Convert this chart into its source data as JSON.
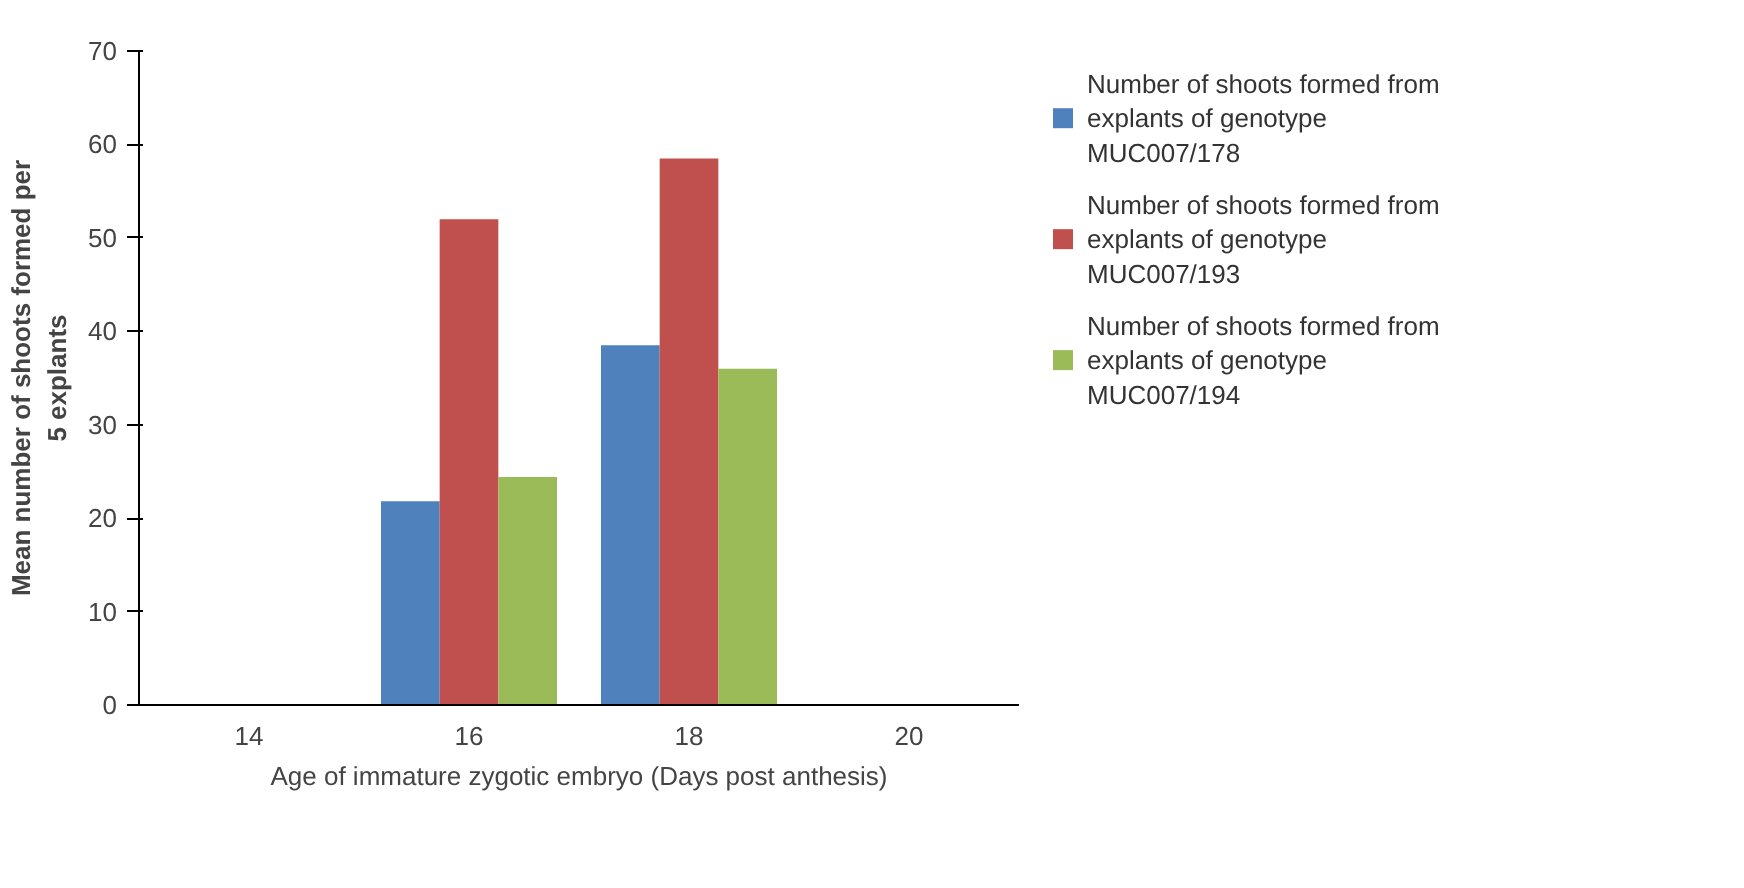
{
  "chart_data": {
    "type": "bar",
    "xlabel": "Age of immature zygotic embryo (Days post anthesis)",
    "ylabel": "Mean number of shoots formed per 5 explants",
    "categories": [
      "14",
      "16",
      "18",
      "20"
    ],
    "series": [
      {
        "name": "Number of shoots formed from explants of genotype MUC007/178",
        "color": "#4f81bd",
        "values": [
          0,
          21.8,
          38.5,
          0
        ]
      },
      {
        "name": "Number of shoots formed from explants of genotype MUC007/193",
        "color": "#c0504d",
        "values": [
          0,
          52,
          58.5,
          0
        ]
      },
      {
        "name": "Number of shoots formed from explants of genotype MUC007/194",
        "color": "#9bbb59",
        "values": [
          0,
          24.4,
          36,
          0
        ]
      }
    ],
    "ylim": [
      0,
      70
    ],
    "yticks": [
      0,
      10,
      20,
      30,
      40,
      50,
      60,
      70
    ],
    "grid": false,
    "legend": "right"
  }
}
